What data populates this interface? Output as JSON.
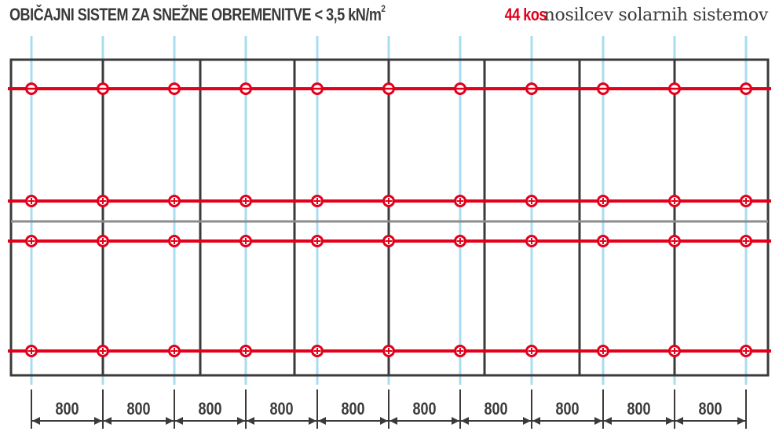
{
  "header": {
    "title_main": "OBIČAJNI SISTEM ZA SNEŽNE OBREMENITVE < 3,5 kN/m",
    "title_sup": "2",
    "count": "44 kos",
    "count_desc": "nosilcev solarnih sistemov"
  },
  "dimensions": [
    "800",
    "800",
    "800",
    "800",
    "800",
    "800",
    "800",
    "800",
    "800",
    "800"
  ],
  "colors": {
    "rail": "#e3001b",
    "rafter": "#a8dcf0",
    "panel_border": "#3a3a3a",
    "divider": "#8c8c8c",
    "text": "#3a3a3a"
  }
}
